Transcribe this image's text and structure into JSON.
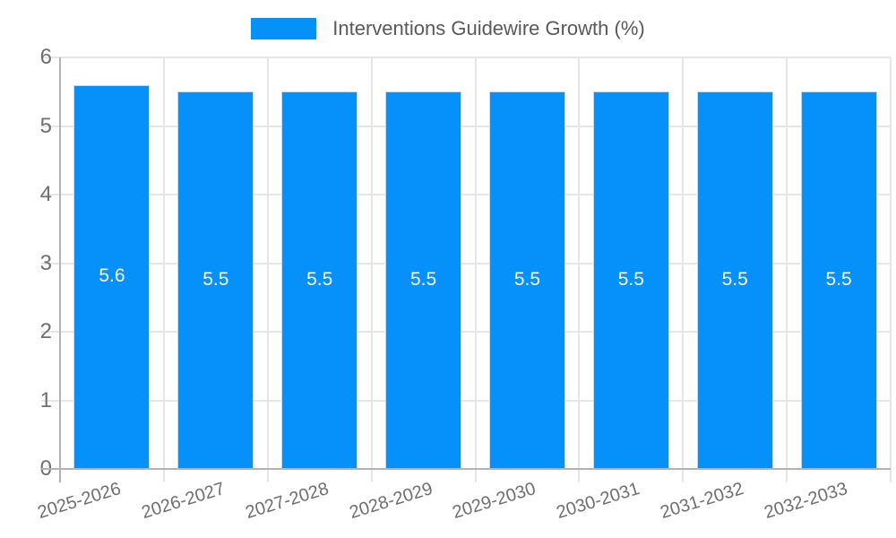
{
  "chart_data": {
    "type": "bar",
    "title": "Interventions Guidewire Growth (%)",
    "categories": [
      "2025-2026",
      "2026-2027",
      "2027-2028",
      "2028-2029",
      "2029-2030",
      "2030-2031",
      "2031-2032",
      "2032-2033"
    ],
    "series": [
      {
        "name": "Interventions Guidewire Growth (%)",
        "values": [
          5.6,
          5.5,
          5.5,
          5.5,
          5.5,
          5.5,
          5.5,
          5.5
        ]
      }
    ],
    "bar_labels": [
      "5.6",
      "5.5",
      "5.5",
      "5.5",
      "5.5",
      "5.5",
      "5.5",
      "5.5"
    ],
    "xlabel": "",
    "ylabel": "",
    "ylim": [
      0,
      6
    ],
    "yticks": [
      "0",
      "1",
      "2",
      "3",
      "4",
      "5",
      "6"
    ],
    "grid": true,
    "legend_position": "top-center",
    "colors": {
      "bar": "#0590fa",
      "gridline": "#e6e6e6",
      "axis": "#b3b3b3",
      "tick_label": "#6f6f6f",
      "legend_text": "#595959",
      "data_label": "#ffffff",
      "background": "#ffffff"
    }
  }
}
